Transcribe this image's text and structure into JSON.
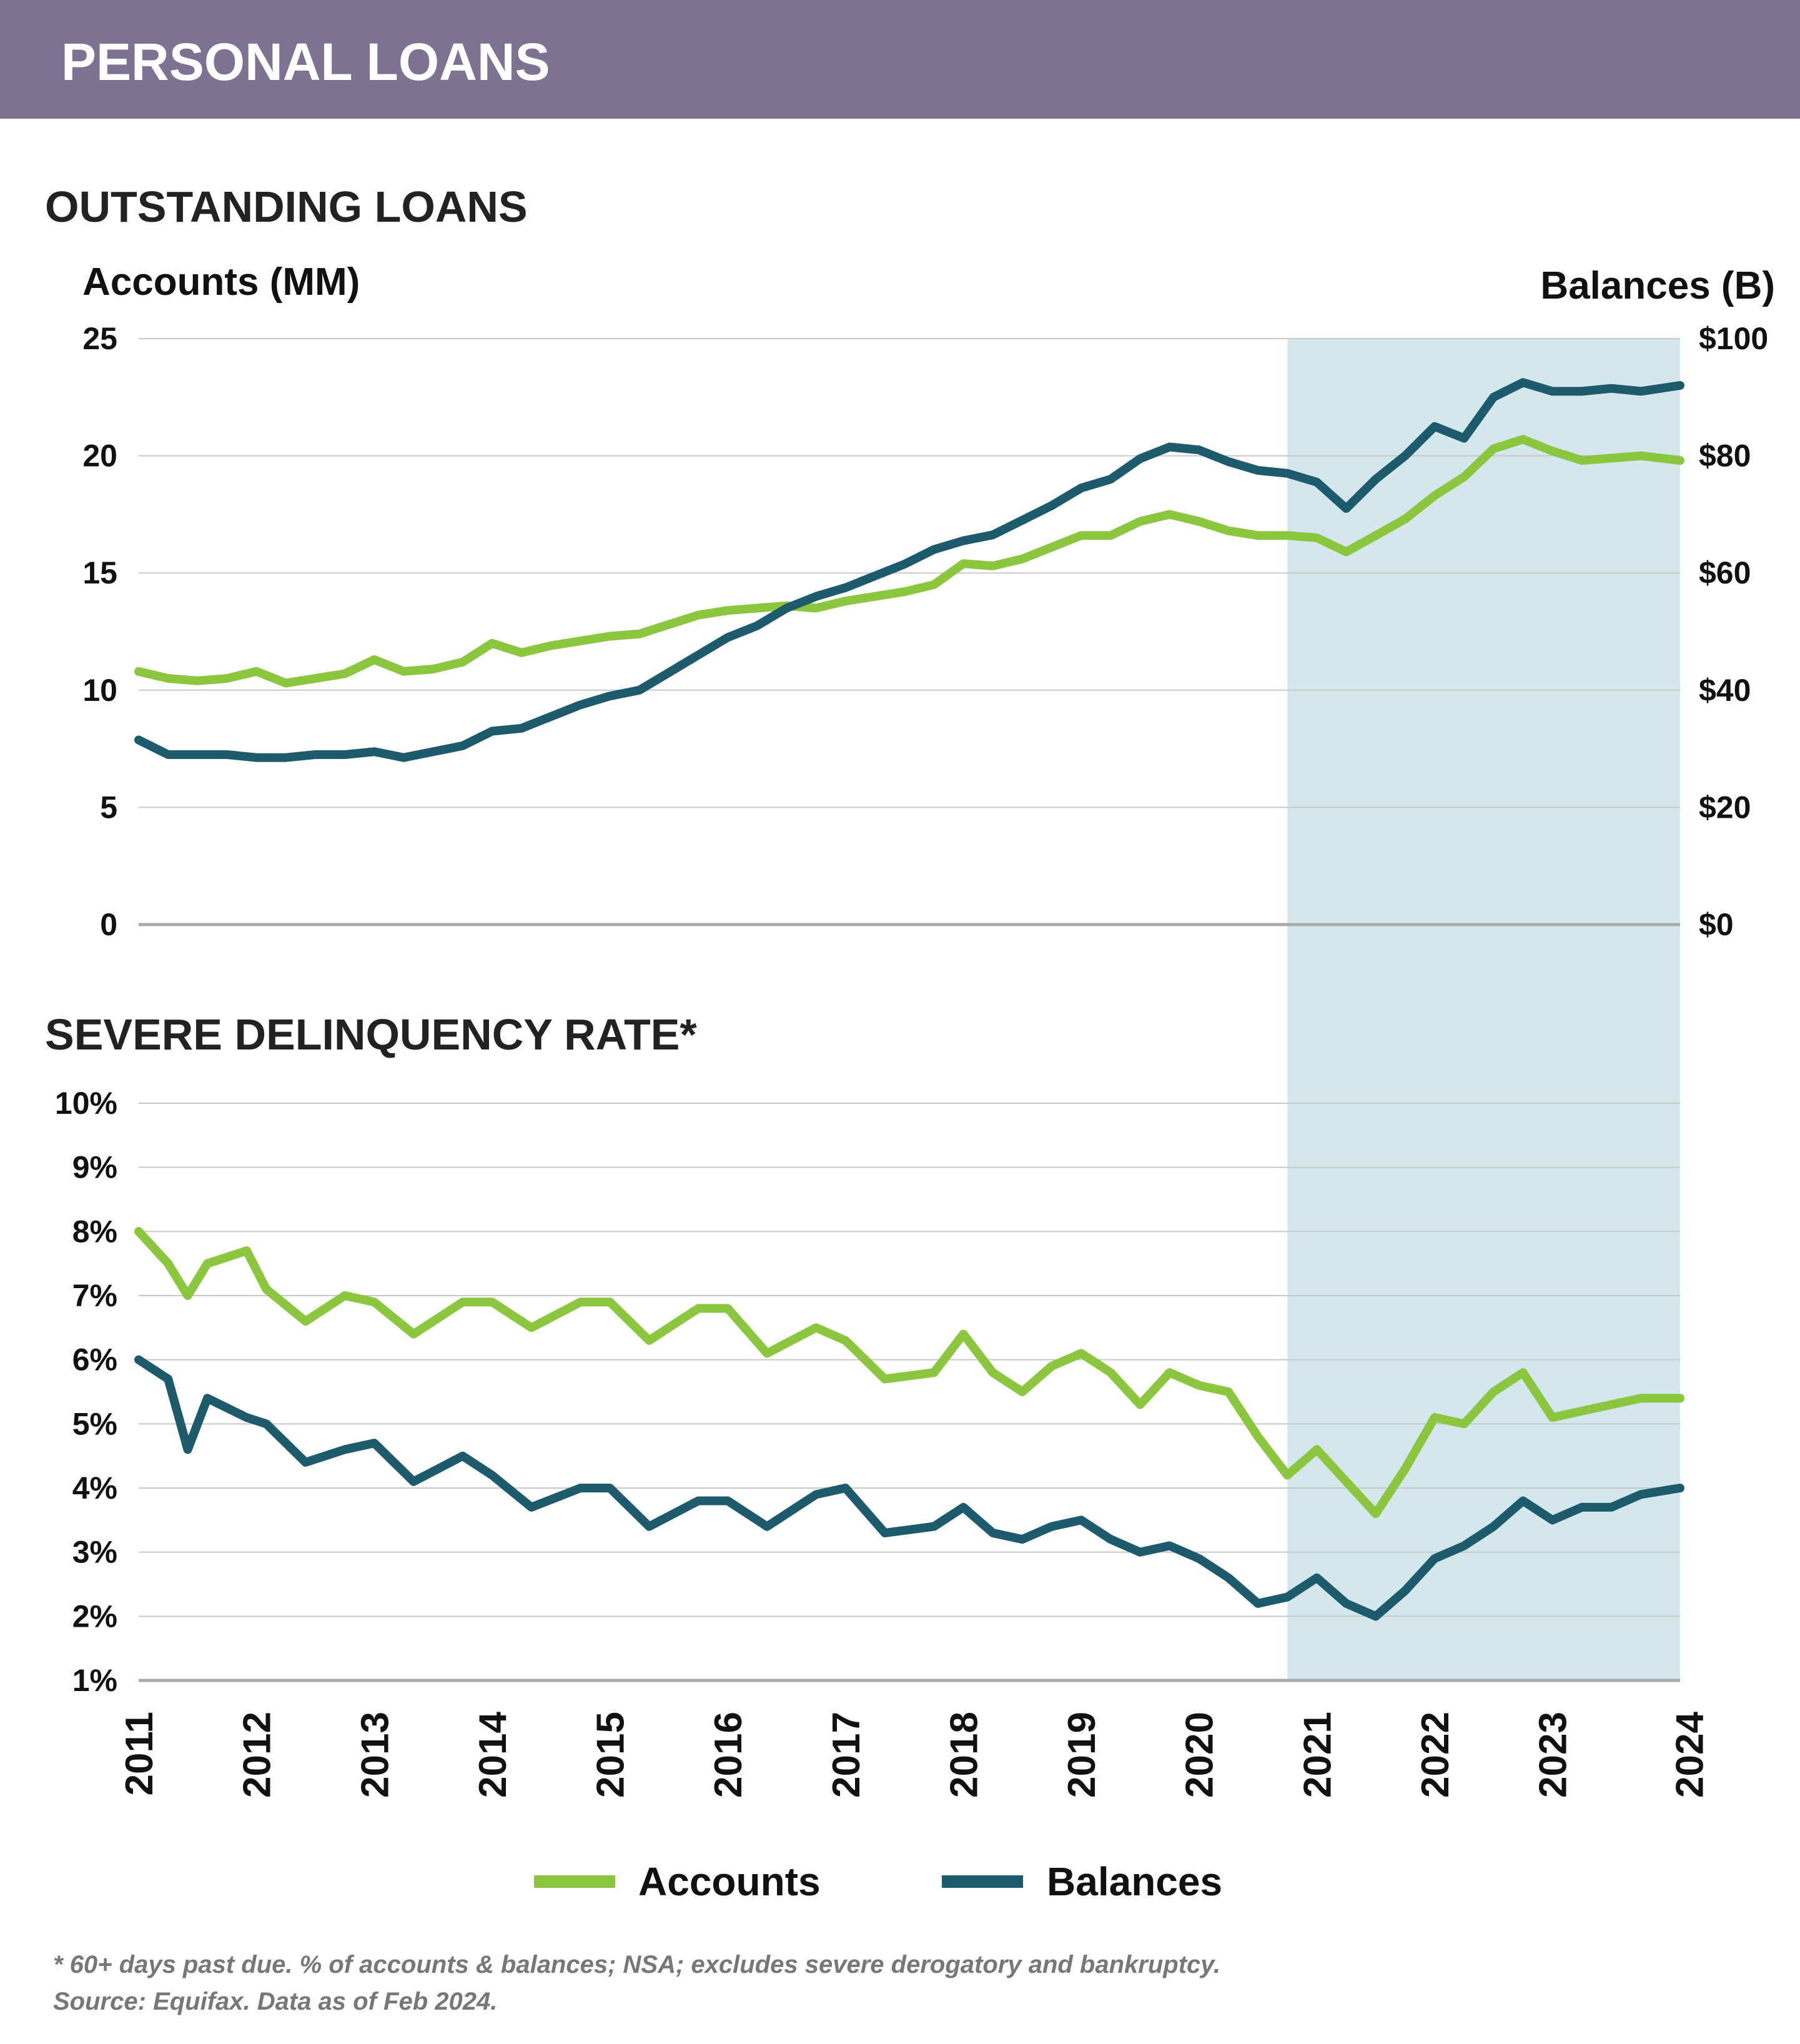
{
  "header": {
    "title": "PERSONAL LOANS"
  },
  "footnote": {
    "line1": "* 60+ days past due. % of accounts & balances; NSA; excludes severe derogatory and bankruptcy.",
    "line2": "Source: Equifax. Data as of Feb 2024."
  },
  "colors": {
    "header_bg": "#7e7292",
    "accounts": "#8cc63f",
    "balances": "#1d5b6c",
    "shade": "#d4e7ec",
    "grid": "#c8c8c8",
    "axis": "#a9a9a9"
  },
  "legend": {
    "accounts_label": "Accounts",
    "balances_label": "Balances"
  },
  "x_axis": {
    "years": [
      "2011",
      "2012",
      "2013",
      "2014",
      "2015",
      "2016",
      "2017",
      "2018",
      "2019",
      "2020",
      "2021",
      "2022",
      "2023",
      "2024"
    ]
  },
  "chart_data": [
    {
      "type": "line",
      "title": "OUTSTANDING LOANS",
      "ylabel_left": "Accounts (MM)",
      "ylabel_right": "Balances (B)",
      "ylim_left": [
        0,
        25
      ],
      "ylim_right": [
        0,
        100
      ],
      "yticks_left": [
        "0",
        "5",
        "10",
        "15",
        "20",
        "25"
      ],
      "yticks_right": [
        "$0",
        "$20",
        "$40",
        "$60",
        "$80",
        "$100"
      ],
      "grid": true,
      "shaded_region": [
        "2020-10",
        "2024-02"
      ],
      "series": [
        {
          "name": "Accounts",
          "axis": "left",
          "points": [
            [
              "2011-01",
              10.8
            ],
            [
              "2011-04",
              10.5
            ],
            [
              "2011-07",
              10.4
            ],
            [
              "2011-10",
              10.5
            ],
            [
              "2012-01",
              10.8
            ],
            [
              "2012-04",
              10.3
            ],
            [
              "2012-07",
              10.5
            ],
            [
              "2012-10",
              10.7
            ],
            [
              "2013-01",
              11.3
            ],
            [
              "2013-04",
              10.8
            ],
            [
              "2013-07",
              10.9
            ],
            [
              "2013-10",
              11.2
            ],
            [
              "2014-01",
              12.0
            ],
            [
              "2014-04",
              11.6
            ],
            [
              "2014-07",
              11.9
            ],
            [
              "2014-10",
              12.1
            ],
            [
              "2015-01",
              12.3
            ],
            [
              "2015-04",
              12.4
            ],
            [
              "2015-07",
              12.8
            ],
            [
              "2015-10",
              13.2
            ],
            [
              "2016-01",
              13.4
            ],
            [
              "2016-04",
              13.5
            ],
            [
              "2016-07",
              13.6
            ],
            [
              "2016-10",
              13.5
            ],
            [
              "2017-01",
              13.8
            ],
            [
              "2017-04",
              14.0
            ],
            [
              "2017-07",
              14.2
            ],
            [
              "2017-10",
              14.5
            ],
            [
              "2018-01",
              15.4
            ],
            [
              "2018-04",
              15.3
            ],
            [
              "2018-07",
              15.6
            ],
            [
              "2018-10",
              16.1
            ],
            [
              "2019-01",
              16.6
            ],
            [
              "2019-04",
              16.6
            ],
            [
              "2019-07",
              17.2
            ],
            [
              "2019-10",
              17.5
            ],
            [
              "2020-01",
              17.2
            ],
            [
              "2020-04",
              16.8
            ],
            [
              "2020-07",
              16.6
            ],
            [
              "2020-10",
              16.6
            ],
            [
              "2021-01",
              16.5
            ],
            [
              "2021-04",
              15.9
            ],
            [
              "2021-07",
              16.6
            ],
            [
              "2021-10",
              17.3
            ],
            [
              "2022-01",
              18.3
            ],
            [
              "2022-04",
              19.1
            ],
            [
              "2022-07",
              20.3
            ],
            [
              "2022-10",
              20.7
            ],
            [
              "2023-01",
              20.2
            ],
            [
              "2023-04",
              19.8
            ],
            [
              "2023-07",
              19.9
            ],
            [
              "2023-10",
              20.0
            ],
            [
              "2024-02",
              19.8
            ]
          ]
        },
        {
          "name": "Balances",
          "axis": "right",
          "points": [
            [
              "2011-01",
              31.5
            ],
            [
              "2011-04",
              29.0
            ],
            [
              "2011-07",
              29.0
            ],
            [
              "2011-10",
              29.0
            ],
            [
              "2012-01",
              28.5
            ],
            [
              "2012-04",
              28.5
            ],
            [
              "2012-07",
              29.0
            ],
            [
              "2012-10",
              29.0
            ],
            [
              "2013-01",
              29.5
            ],
            [
              "2013-04",
              28.5
            ],
            [
              "2013-07",
              29.5
            ],
            [
              "2013-10",
              30.5
            ],
            [
              "2014-01",
              33.0
            ],
            [
              "2014-04",
              33.5
            ],
            [
              "2014-07",
              35.5
            ],
            [
              "2014-10",
              37.5
            ],
            [
              "2015-01",
              39.0
            ],
            [
              "2015-04",
              40.0
            ],
            [
              "2015-07",
              43.0
            ],
            [
              "2015-10",
              46.0
            ],
            [
              "2016-01",
              49.0
            ],
            [
              "2016-04",
              51.0
            ],
            [
              "2016-07",
              54.0
            ],
            [
              "2016-10",
              56.0
            ],
            [
              "2017-01",
              57.5
            ],
            [
              "2017-04",
              59.5
            ],
            [
              "2017-07",
              61.5
            ],
            [
              "2017-10",
              64.0
            ],
            [
              "2018-01",
              65.5
            ],
            [
              "2018-04",
              66.5
            ],
            [
              "2018-07",
              69.0
            ],
            [
              "2018-10",
              71.5
            ],
            [
              "2019-01",
              74.5
            ],
            [
              "2019-04",
              76.0
            ],
            [
              "2019-07",
              79.5
            ],
            [
              "2019-10",
              81.5
            ],
            [
              "2020-01",
              81.0
            ],
            [
              "2020-04",
              79.0
            ],
            [
              "2020-07",
              77.5
            ],
            [
              "2020-10",
              77.0
            ],
            [
              "2021-01",
              75.5
            ],
            [
              "2021-04",
              71.0
            ],
            [
              "2021-07",
              76.0
            ],
            [
              "2021-10",
              80.0
            ],
            [
              "2022-01",
              85.0
            ],
            [
              "2022-04",
              83.0
            ],
            [
              "2022-07",
              90.0
            ],
            [
              "2022-10",
              92.5
            ],
            [
              "2023-01",
              91.0
            ],
            [
              "2023-04",
              91.0
            ],
            [
              "2023-07",
              91.5
            ],
            [
              "2023-10",
              91.0
            ],
            [
              "2024-02",
              92.0
            ]
          ]
        }
      ]
    },
    {
      "type": "line",
      "title": "SEVERE DELINQUENCY RATE*",
      "ylim": [
        1,
        10
      ],
      "yticks": [
        "1%",
        "2%",
        "3%",
        "4%",
        "5%",
        "6%",
        "7%",
        "8%",
        "9%",
        "10%"
      ],
      "grid": true,
      "shaded_region": [
        "2020-10",
        "2024-02"
      ],
      "series": [
        {
          "name": "Accounts",
          "points": [
            [
              "2011-01",
              8.0
            ],
            [
              "2011-04",
              7.5
            ],
            [
              "2011-06",
              7.0
            ],
            [
              "2011-08",
              7.5
            ],
            [
              "2011-12",
              7.7
            ],
            [
              "2012-02",
              7.1
            ],
            [
              "2012-06",
              6.6
            ],
            [
              "2012-10",
              7.0
            ],
            [
              "2013-01",
              6.9
            ],
            [
              "2013-05",
              6.4
            ],
            [
              "2013-10",
              6.9
            ],
            [
              "2014-01",
              6.9
            ],
            [
              "2014-05",
              6.5
            ],
            [
              "2014-10",
              6.9
            ],
            [
              "2015-01",
              6.9
            ],
            [
              "2015-05",
              6.3
            ],
            [
              "2015-10",
              6.8
            ],
            [
              "2016-01",
              6.8
            ],
            [
              "2016-05",
              6.1
            ],
            [
              "2016-10",
              6.5
            ],
            [
              "2017-01",
              6.3
            ],
            [
              "2017-05",
              5.7
            ],
            [
              "2017-10",
              5.8
            ],
            [
              "2018-01",
              6.4
            ],
            [
              "2018-04",
              5.8
            ],
            [
              "2018-07",
              5.5
            ],
            [
              "2018-10",
              5.9
            ],
            [
              "2019-01",
              6.1
            ],
            [
              "2019-04",
              5.8
            ],
            [
              "2019-07",
              5.3
            ],
            [
              "2019-10",
              5.8
            ],
            [
              "2020-01",
              5.6
            ],
            [
              "2020-04",
              5.5
            ],
            [
              "2020-07",
              4.8
            ],
            [
              "2020-10",
              4.2
            ],
            [
              "2021-01",
              4.6
            ],
            [
              "2021-04",
              4.1
            ],
            [
              "2021-07",
              3.6
            ],
            [
              "2021-10",
              4.3
            ],
            [
              "2022-01",
              5.1
            ],
            [
              "2022-04",
              5.0
            ],
            [
              "2022-07",
              5.5
            ],
            [
              "2022-10",
              5.8
            ],
            [
              "2023-01",
              5.1
            ],
            [
              "2023-04",
              5.2
            ],
            [
              "2023-07",
              5.3
            ],
            [
              "2023-10",
              5.4
            ],
            [
              "2024-02",
              5.4
            ]
          ]
        },
        {
          "name": "Balances",
          "points": [
            [
              "2011-01",
              6.0
            ],
            [
              "2011-04",
              5.7
            ],
            [
              "2011-06",
              4.6
            ],
            [
              "2011-08",
              5.4
            ],
            [
              "2011-12",
              5.1
            ],
            [
              "2012-02",
              5.0
            ],
            [
              "2012-06",
              4.4
            ],
            [
              "2012-10",
              4.6
            ],
            [
              "2013-01",
              4.7
            ],
            [
              "2013-05",
              4.1
            ],
            [
              "2013-10",
              4.5
            ],
            [
              "2014-01",
              4.2
            ],
            [
              "2014-05",
              3.7
            ],
            [
              "2014-10",
              4.0
            ],
            [
              "2015-01",
              4.0
            ],
            [
              "2015-05",
              3.4
            ],
            [
              "2015-10",
              3.8
            ],
            [
              "2016-01",
              3.8
            ],
            [
              "2016-05",
              3.4
            ],
            [
              "2016-10",
              3.9
            ],
            [
              "2017-01",
              4.0
            ],
            [
              "2017-05",
              3.3
            ],
            [
              "2017-10",
              3.4
            ],
            [
              "2018-01",
              3.7
            ],
            [
              "2018-04",
              3.3
            ],
            [
              "2018-07",
              3.2
            ],
            [
              "2018-10",
              3.4
            ],
            [
              "2019-01",
              3.5
            ],
            [
              "2019-04",
              3.2
            ],
            [
              "2019-07",
              3.0
            ],
            [
              "2019-10",
              3.1
            ],
            [
              "2020-01",
              2.9
            ],
            [
              "2020-04",
              2.6
            ],
            [
              "2020-07",
              2.2
            ],
            [
              "2020-10",
              2.3
            ],
            [
              "2021-01",
              2.6
            ],
            [
              "2021-04",
              2.2
            ],
            [
              "2021-07",
              2.0
            ],
            [
              "2021-10",
              2.4
            ],
            [
              "2022-01",
              2.9
            ],
            [
              "2022-04",
              3.1
            ],
            [
              "2022-07",
              3.4
            ],
            [
              "2022-10",
              3.8
            ],
            [
              "2023-01",
              3.5
            ],
            [
              "2023-04",
              3.7
            ],
            [
              "2023-07",
              3.7
            ],
            [
              "2023-10",
              3.9
            ],
            [
              "2024-02",
              4.0
            ]
          ]
        }
      ]
    }
  ]
}
